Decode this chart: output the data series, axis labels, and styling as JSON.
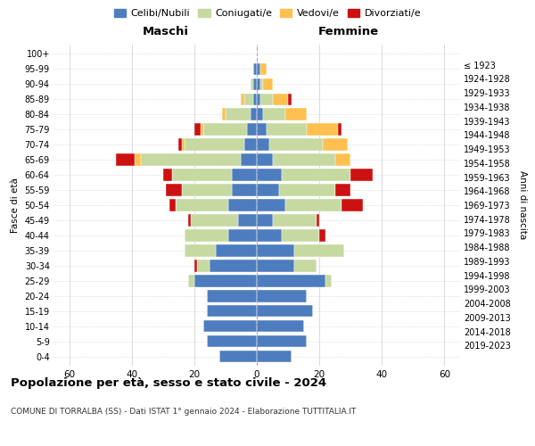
{
  "age_groups": [
    "0-4",
    "5-9",
    "10-14",
    "15-19",
    "20-24",
    "25-29",
    "30-34",
    "35-39",
    "40-44",
    "45-49",
    "50-54",
    "55-59",
    "60-64",
    "65-69",
    "70-74",
    "75-79",
    "80-84",
    "85-89",
    "90-94",
    "95-99",
    "100+"
  ],
  "birth_years": [
    "2019-2023",
    "2014-2018",
    "2009-2013",
    "2004-2008",
    "1999-2003",
    "1994-1998",
    "1989-1993",
    "1984-1988",
    "1979-1983",
    "1974-1978",
    "1969-1973",
    "1964-1968",
    "1959-1963",
    "1954-1958",
    "1949-1953",
    "1944-1948",
    "1939-1943",
    "1934-1938",
    "1929-1933",
    "1924-1928",
    "≤ 1923"
  ],
  "colors": {
    "celibi": "#4d7dbe",
    "coniugati": "#c5d9a0",
    "vedovi": "#ffc050",
    "divorziati": "#cc1111"
  },
  "maschi": {
    "celibi": [
      12,
      16,
      17,
      16,
      16,
      20,
      15,
      13,
      9,
      6,
      9,
      8,
      8,
      5,
      4,
      3,
      2,
      1,
      1,
      1,
      0
    ],
    "coniugati": [
      0,
      0,
      0,
      0,
      0,
      2,
      4,
      10,
      14,
      15,
      17,
      16,
      19,
      32,
      19,
      14,
      8,
      3,
      1,
      0,
      0
    ],
    "vedovi": [
      0,
      0,
      0,
      0,
      0,
      0,
      0,
      0,
      0,
      0,
      0,
      0,
      0,
      2,
      1,
      1,
      1,
      1,
      0,
      0,
      0
    ],
    "divorziati": [
      0,
      0,
      0,
      0,
      0,
      0,
      1,
      0,
      0,
      1,
      2,
      5,
      3,
      6,
      1,
      2,
      0,
      0,
      0,
      0,
      0
    ]
  },
  "femmine": {
    "celibi": [
      11,
      16,
      15,
      18,
      16,
      22,
      12,
      12,
      8,
      5,
      9,
      7,
      8,
      5,
      4,
      3,
      2,
      1,
      1,
      1,
      0
    ],
    "coniugati": [
      0,
      0,
      0,
      0,
      0,
      2,
      7,
      16,
      12,
      14,
      18,
      18,
      22,
      20,
      17,
      13,
      7,
      4,
      1,
      0,
      0
    ],
    "vedovi": [
      0,
      0,
      0,
      0,
      0,
      0,
      0,
      0,
      0,
      0,
      0,
      0,
      0,
      5,
      8,
      10,
      7,
      5,
      3,
      2,
      0
    ],
    "divorziati": [
      0,
      0,
      0,
      0,
      0,
      0,
      0,
      0,
      2,
      1,
      7,
      5,
      7,
      0,
      0,
      1,
      0,
      1,
      0,
      0,
      0
    ]
  },
  "title": "Popolazione per età, sesso e stato civile - 2024",
  "subtitle": "COMUNE DI TORRALBA (SS) - Dati ISTAT 1° gennaio 2024 - Elaborazione TUTTITALIA.IT",
  "xlabel_left": "Maschi",
  "xlabel_right": "Femmine",
  "ylabel_left": "Fasce di età",
  "ylabel_right": "Anni di nascita",
  "xlim": 65,
  "bg_color": "#ffffff",
  "grid_color": "#cccccc"
}
